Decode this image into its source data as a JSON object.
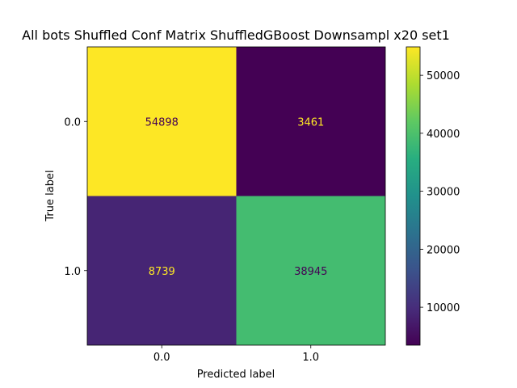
{
  "chart_data": {
    "type": "heatmap",
    "title": "All bots Shuffled Conf Matrix ShuffledGBoost Downsampl x20 set1",
    "xlabel": "Predicted label",
    "ylabel": "True label",
    "x_tick_labels": [
      "0.0",
      "1.0"
    ],
    "y_tick_labels": [
      "0.0",
      "1.0"
    ],
    "matrix": [
      [
        54898,
        3461
      ],
      [
        8739,
        38945
      ]
    ],
    "colormap": "viridis",
    "colorbar_ticks": [
      "10000",
      "20000",
      "30000",
      "40000",
      "50000"
    ],
    "colorbar_range": [
      3461,
      54898
    ]
  }
}
